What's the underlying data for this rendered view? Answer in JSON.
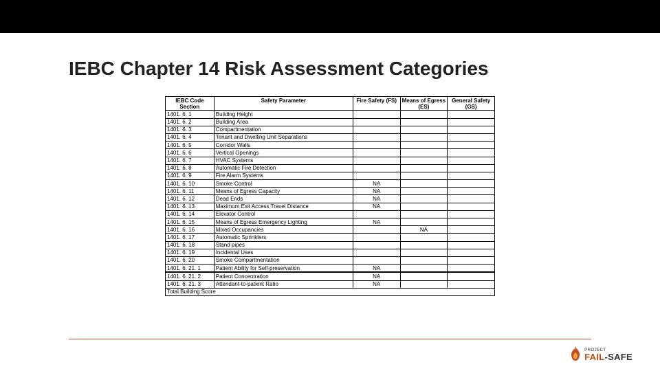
{
  "title": "IEBC Chapter 14 Risk Assessment Categories",
  "table": {
    "columns": [
      "IEBC Code Section",
      "Safety Parameter",
      "Fire Safety (FS)",
      "Means of Egress (ES)",
      "General Safety (GS)"
    ],
    "rows": [
      {
        "code": "1401. 6. 1",
        "param": "Building Height",
        "fs": "",
        "es": "",
        "gs": ""
      },
      {
        "code": "1401. 6. 2",
        "param": "Building Area",
        "fs": "",
        "es": "",
        "gs": ""
      },
      {
        "code": "1401. 6. 3",
        "param": "Compartmentation",
        "fs": "",
        "es": "",
        "gs": ""
      },
      {
        "code": "1401. 6. 4",
        "param": "Tenant and Dwelling Unit Separations",
        "fs": "",
        "es": "",
        "gs": ""
      },
      {
        "code": "1401. 6. 5",
        "param": "Corridor Walls",
        "fs": "",
        "es": "",
        "gs": ""
      },
      {
        "code": "1401. 6. 6",
        "param": "Vertical Openings",
        "fs": "",
        "es": "",
        "gs": ""
      },
      {
        "code": "1401. 6. 7",
        "param": "HVAC Systems",
        "fs": "",
        "es": "",
        "gs": ""
      },
      {
        "code": "1401. 6. 8",
        "param": "Automatic Fire Detection",
        "fs": "",
        "es": "",
        "gs": ""
      },
      {
        "code": "1401. 6. 9",
        "param": "Fire Alarm Systems",
        "fs": "",
        "es": "",
        "gs": ""
      },
      {
        "code": "1401. 6. 10",
        "param": "Smoke Control",
        "fs": "NA",
        "es": "",
        "gs": ""
      },
      {
        "code": "1401. 6. 11",
        "param": "Means of Egress Capacity",
        "fs": "NA",
        "es": "",
        "gs": ""
      },
      {
        "code": "1401. 6. 12",
        "param": "Dead Ends",
        "fs": "NA",
        "es": "",
        "gs": ""
      },
      {
        "code": "1401. 6. 13",
        "param": "Maximum Exit Access Travel Distance",
        "fs": "NA",
        "es": "",
        "gs": ""
      },
      {
        "code": "1401. 6. 14",
        "param": "Elevator Control",
        "fs": "",
        "es": "",
        "gs": ""
      },
      {
        "code": "1401. 6. 15",
        "param": "Means of Egress Emergency Lighting",
        "fs": "NA",
        "es": "",
        "gs": ""
      },
      {
        "code": "1401. 6. 16",
        "param": "Mixed Occupancies",
        "fs": "",
        "es": "NA",
        "gs": ""
      },
      {
        "code": "1401. 6. 17",
        "param": "Automatic Sprinklers",
        "fs": "",
        "es": "",
        "gs": ""
      },
      {
        "code": "1401. 6. 18",
        "param": "Stand pipes",
        "fs": "",
        "es": "",
        "gs": ""
      },
      {
        "code": "1401. 6. 19",
        "param": "Incidental Uses",
        "fs": "",
        "es": "",
        "gs": ""
      },
      {
        "code": "1401. 6. 20",
        "param": "Smoke Compartmentation",
        "fs": "",
        "es": "",
        "gs": ""
      },
      {
        "code": "1401. 6. 21. 1",
        "param": "Patient Ability for Self-preservation",
        "fs": "NA",
        "es": "",
        "gs": ""
      },
      {
        "code": "1401. 6. 21. 2",
        "param": "Patient Concentration",
        "fs": "NA",
        "es": "",
        "gs": "",
        "thick": true
      },
      {
        "code": "1401. 6. 21. 3",
        "param": "Attendant-to-patient Ratio",
        "fs": "NA",
        "es": "",
        "gs": ""
      }
    ],
    "total_label": "Total Building Score"
  },
  "brand": {
    "project_label": "PROJECT",
    "name_a": "FAIL",
    "name_b": "-SAFE",
    "accent_color": "#c24d1f"
  }
}
